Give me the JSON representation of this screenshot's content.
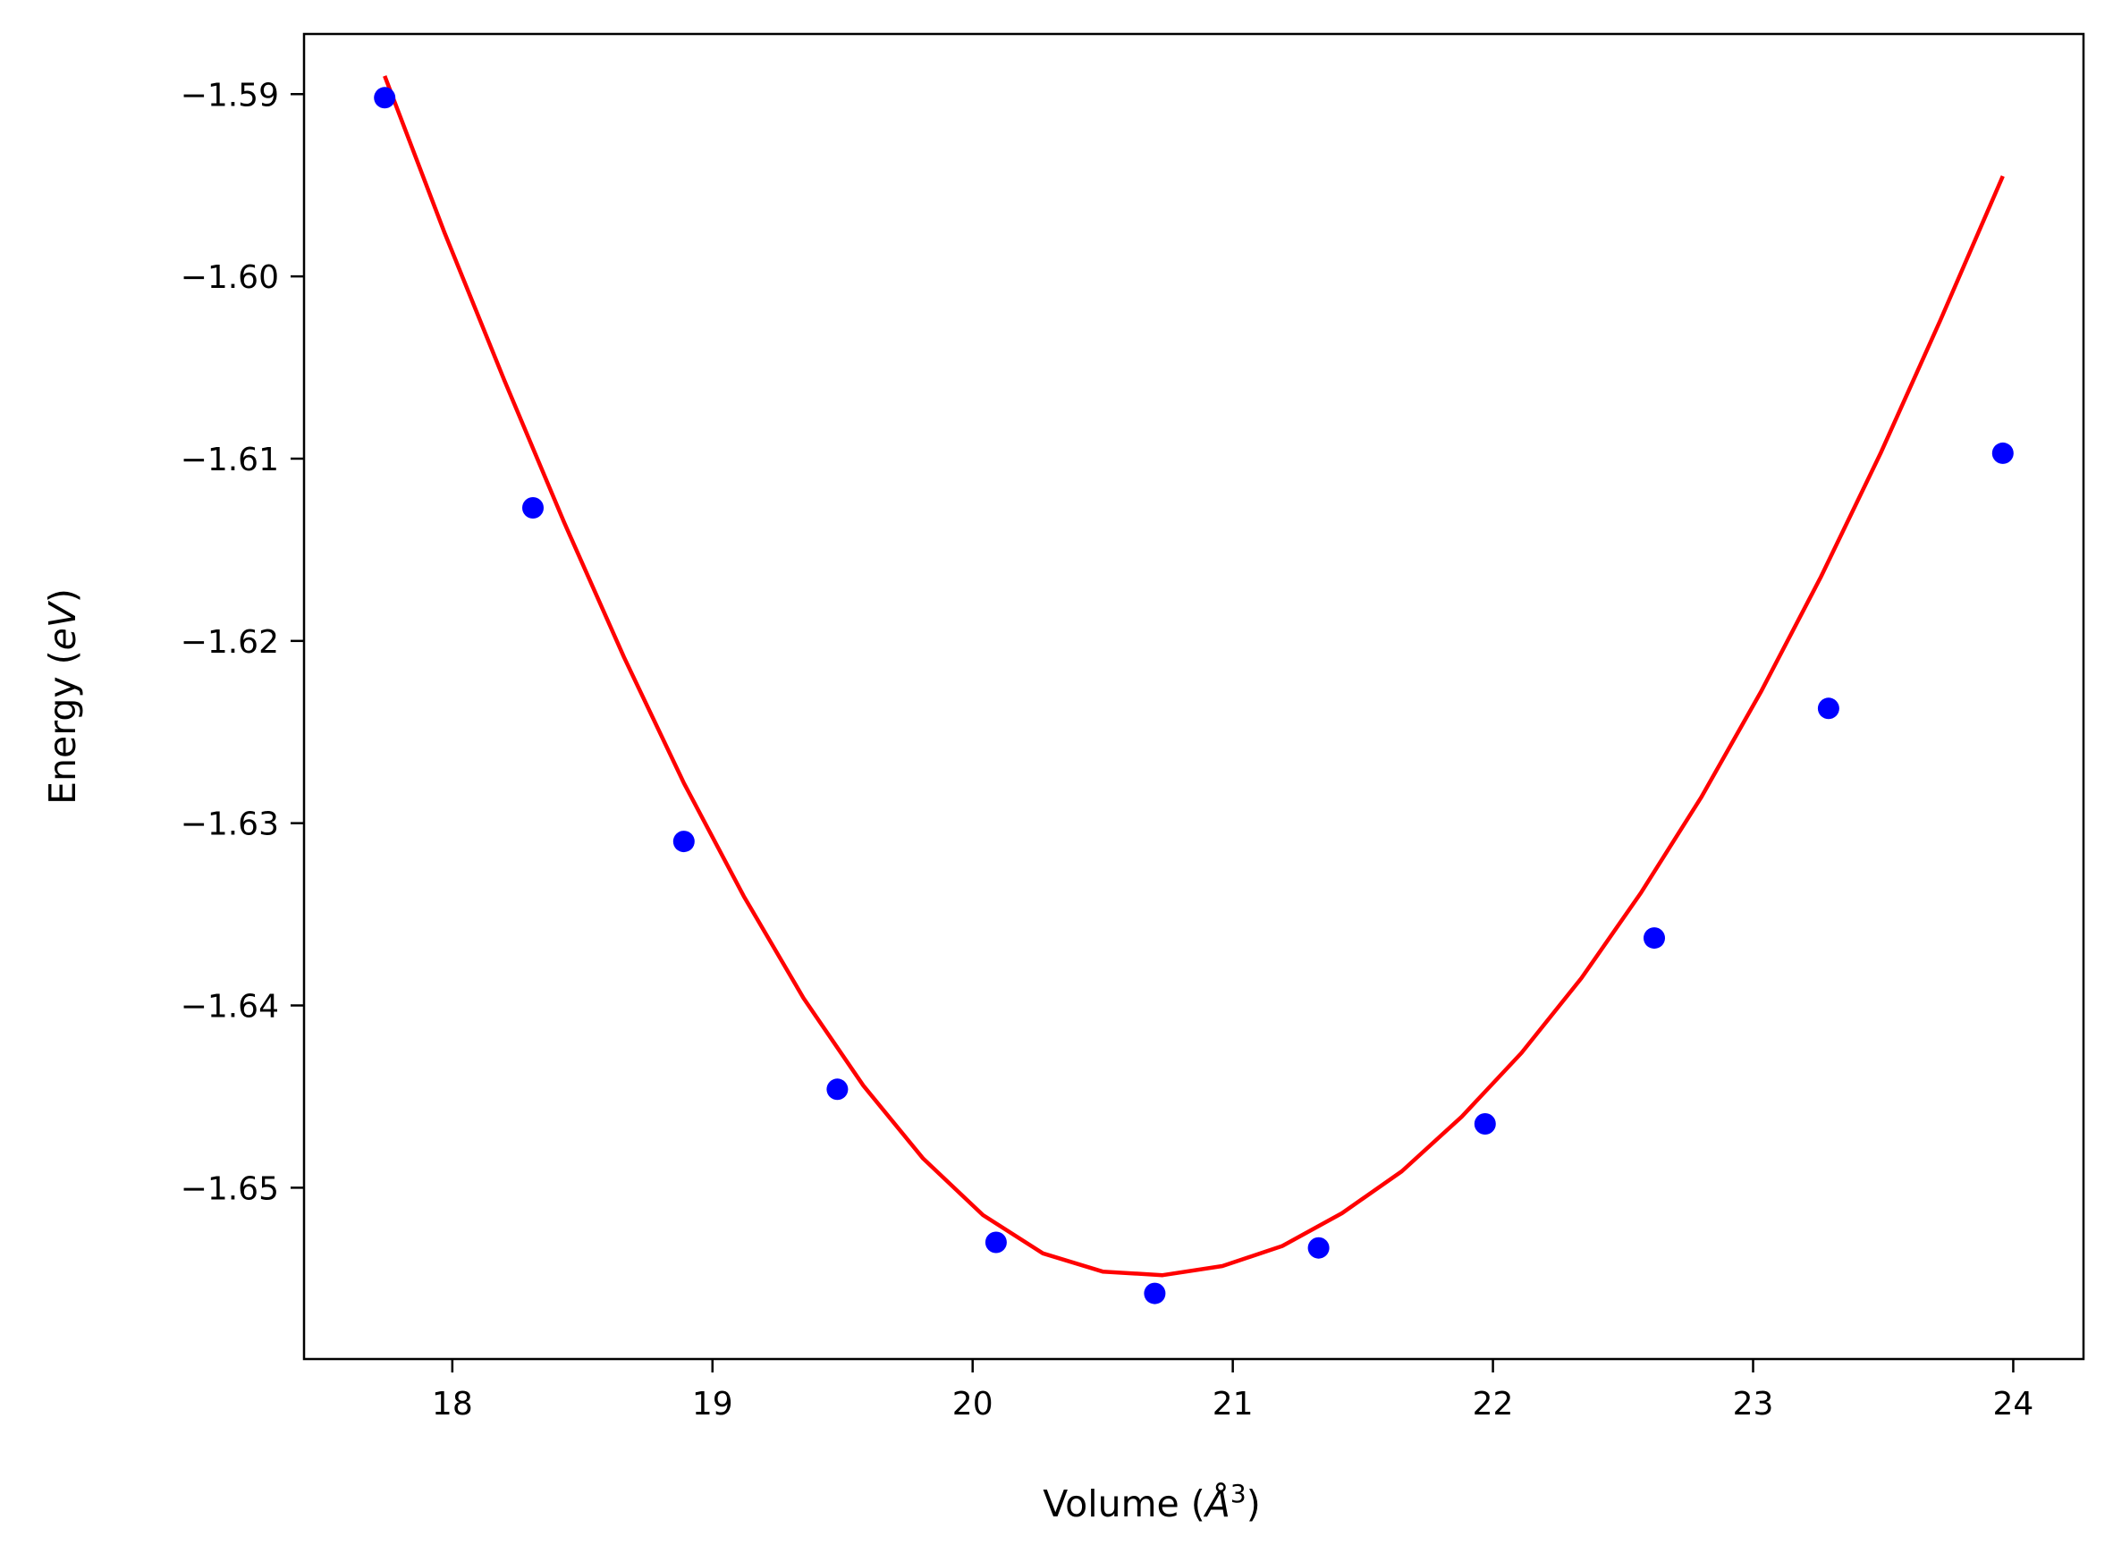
{
  "chart_data": {
    "type": "scatter",
    "title": "",
    "xlabel": "Volume (Å³)",
    "xlabel_parts": {
      "prefix": "Volume (",
      "symbol": "Å",
      "sup": "3",
      "suffix": ")"
    },
    "ylabel": "Energy (eV)",
    "ylabel_parts": {
      "prefix": "Energy (",
      "italic": "eV",
      "suffix": ")"
    },
    "xlim": [
      17.43,
      24.27
    ],
    "ylim": [
      -1.6594,
      -1.5867
    ],
    "xticks": [
      18,
      19,
      20,
      21,
      22,
      23,
      24
    ],
    "xtick_labels": [
      "18",
      "19",
      "20",
      "21",
      "22",
      "23",
      "24"
    ],
    "yticks": [
      -1.59,
      -1.6,
      -1.61,
      -1.62,
      -1.63,
      -1.64,
      -1.65
    ],
    "ytick_labels": [
      "−1.59",
      "−1.60",
      "−1.61",
      "−1.62",
      "−1.63",
      "−1.64",
      "−1.65"
    ],
    "grid": false,
    "series": [
      {
        "kind": "points",
        "color": "#0000ff",
        "x": [
          17.74,
          18.31,
          18.89,
          19.48,
          20.09,
          20.7,
          21.33,
          21.97,
          22.62,
          23.29,
          23.96
        ],
        "y": [
          -1.5902,
          -1.6127,
          -1.631,
          -1.6446,
          -1.653,
          -1.6558,
          -1.6533,
          -1.6465,
          -1.6363,
          -1.6237,
          -1.6097
        ]
      },
      {
        "kind": "fit-line",
        "color": "#ff0000",
        "x": [
          17.74,
          17.97,
          18.2,
          18.43,
          18.66,
          18.89,
          19.12,
          19.35,
          19.58,
          19.81,
          20.04,
          20.27,
          20.5,
          20.73,
          20.96,
          21.19,
          21.42,
          21.65,
          21.88,
          22.11,
          22.34,
          22.57,
          22.8,
          23.03,
          23.26,
          23.49,
          23.72,
          23.96
        ],
        "y": [
          -1.589,
          -1.5976,
          -1.6057,
          -1.6135,
          -1.6209,
          -1.6278,
          -1.634,
          -1.6396,
          -1.6444,
          -1.6484,
          -1.6515,
          -1.6536,
          -1.6546,
          -1.6548,
          -1.6543,
          -1.6532,
          -1.6514,
          -1.6491,
          -1.6461,
          -1.6426,
          -1.6385,
          -1.6338,
          -1.6286,
          -1.6228,
          -1.6165,
          -1.6097,
          -1.6024,
          -1.5945
        ]
      }
    ]
  }
}
